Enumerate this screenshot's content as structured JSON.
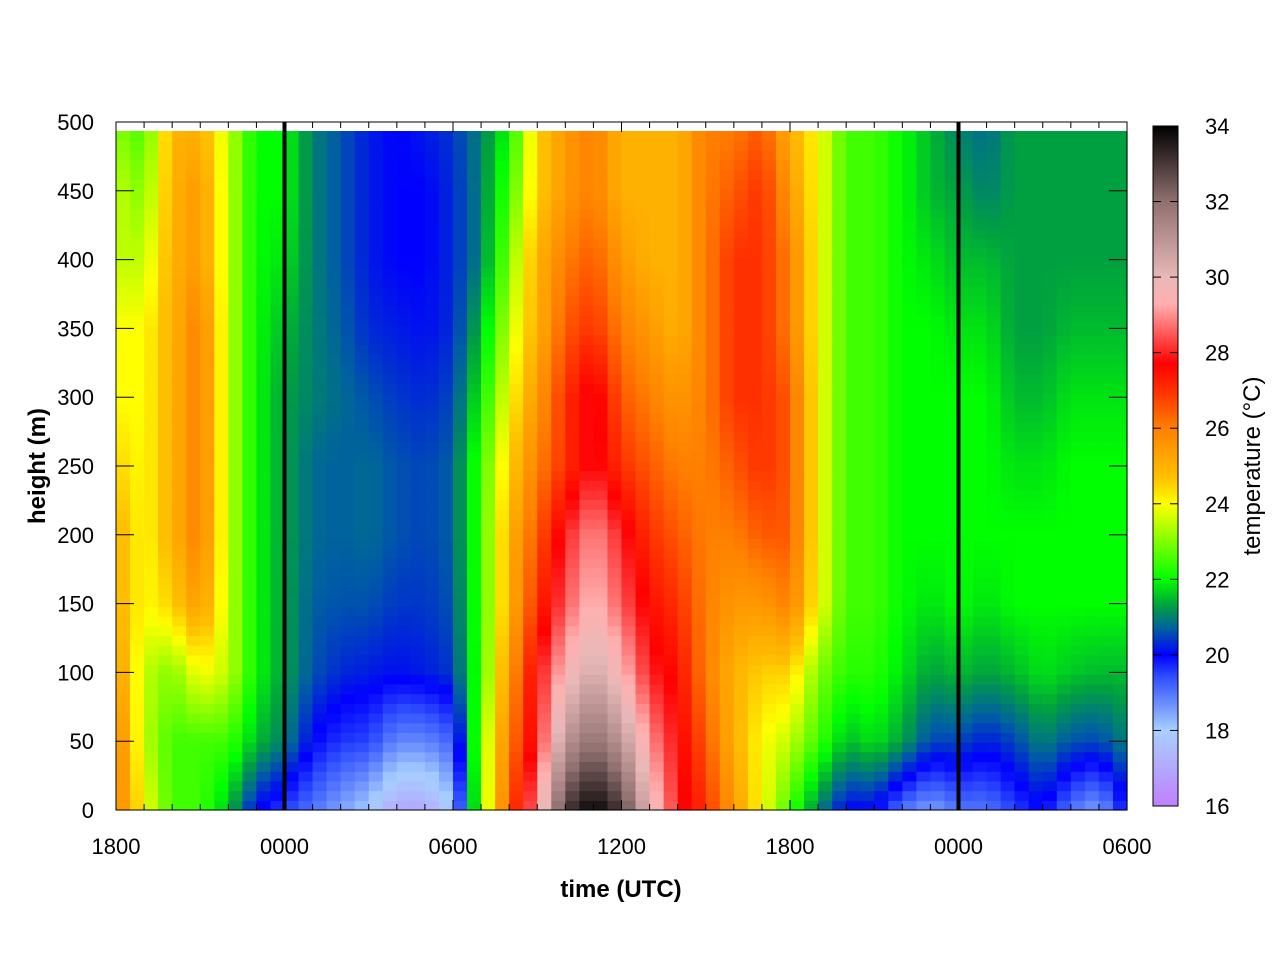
{
  "chart_data": {
    "type": "heatmap",
    "xlabel": "time (UTC)",
    "ylabel": "height (m)",
    "colorbar_label": "temperature (°C)",
    "x_tick_labels": [
      "1800",
      "0000",
      "0600",
      "1200",
      "1800",
      "0000",
      "0600"
    ],
    "x_range_hours": [
      0,
      36
    ],
    "y_ticks": [
      0,
      50,
      100,
      150,
      200,
      250,
      300,
      350,
      400,
      450,
      500
    ],
    "y_range": [
      0,
      500
    ],
    "color_range": [
      16,
      34
    ],
    "colorbar_ticks": [
      16,
      18,
      20,
      22,
      24,
      26,
      28,
      30,
      32,
      34
    ],
    "vertical_markers": [
      "0000",
      "0000"
    ],
    "colormap": [
      {
        "value": 16,
        "color": "#c080ff"
      },
      {
        "value": 18,
        "color": "#a8d0ff"
      },
      {
        "value": 19.4,
        "color": "#3050ff"
      },
      {
        "value": 20,
        "color": "#0000ff"
      },
      {
        "value": 20.7,
        "color": "#0060a0"
      },
      {
        "value": 21.3,
        "color": "#00a040"
      },
      {
        "value": 22,
        "color": "#00ff00"
      },
      {
        "value": 23,
        "color": "#80ff00"
      },
      {
        "value": 24,
        "color": "#ffff00"
      },
      {
        "value": 24.7,
        "color": "#ffc000"
      },
      {
        "value": 26,
        "color": "#ff8000"
      },
      {
        "value": 27,
        "color": "#ff3000"
      },
      {
        "value": 27.7,
        "color": "#ff0000"
      },
      {
        "value": 29.3,
        "color": "#ffb0b0"
      },
      {
        "value": 30,
        "color": "#e8b8b8"
      },
      {
        "value": 32,
        "color": "#907070"
      },
      {
        "value": 34,
        "color": "#000000"
      }
    ],
    "time_profiles": [
      {
        "hour": 0,
        "t": [
          26,
          26,
          25.5,
          25,
          25,
          24.5,
          24,
          24,
          23.5,
          23.5,
          23
        ]
      },
      {
        "hour": 1,
        "t": [
          24,
          23.5,
          23.5,
          24,
          24,
          24,
          24,
          24,
          23.5,
          23,
          22.5
        ]
      },
      {
        "hour": 2,
        "t": [
          22.5,
          22.5,
          23,
          24.5,
          25,
          25,
          25,
          25,
          25,
          25,
          25
        ]
      },
      {
        "hour": 3,
        "t": [
          22.5,
          22.5,
          24,
          25.5,
          26,
          26,
          26,
          26,
          25.5,
          25.5,
          25
        ]
      },
      {
        "hour": 4,
        "t": [
          21.5,
          22.5,
          23.5,
          23.5,
          23.5,
          23.5,
          23.5,
          23.5,
          23.5,
          23.5,
          23.5
        ]
      },
      {
        "hour": 5,
        "t": [
          20,
          21.5,
          22,
          22,
          22,
          22,
          22,
          22,
          22,
          22,
          22
        ]
      },
      {
        "hour": 6,
        "t": [
          19.5,
          21,
          21.3,
          21.3,
          21.3,
          21.3,
          21.3,
          21.5,
          21.8,
          22,
          22
        ]
      },
      {
        "hour": 7,
        "t": [
          19,
          20,
          20.6,
          20.7,
          20.8,
          20.8,
          21,
          21,
          21,
          21,
          21
        ]
      },
      {
        "hour": 8,
        "t": [
          18.5,
          19.6,
          20.3,
          20.6,
          20.7,
          20.7,
          20.8,
          20.7,
          20.6,
          20.6,
          20.6
        ]
      },
      {
        "hour": 9,
        "t": [
          18,
          19.5,
          20.2,
          20.6,
          20.8,
          20.8,
          20.6,
          20.3,
          20.2,
          20.2,
          20.2
        ]
      },
      {
        "hour": 10,
        "t": [
          17,
          18.8,
          20.1,
          20.4,
          20.6,
          20.6,
          20.4,
          20.2,
          20,
          20,
          20
        ]
      },
      {
        "hour": 11,
        "t": [
          17,
          18.8,
          20.2,
          20.4,
          20.5,
          20.5,
          20.3,
          20.1,
          20,
          20,
          20.2
        ]
      },
      {
        "hour": 12,
        "t": [
          18,
          19.2,
          20.4,
          20.6,
          20.7,
          20.7,
          20.5,
          20.3,
          20.3,
          20.3,
          20.4
        ]
      },
      {
        "hour": 13,
        "t": [
          23,
          23,
          22.5,
          22.5,
          22.5,
          22.5,
          22,
          21.5,
          21,
          21,
          21
        ]
      },
      {
        "hour": 14,
        "t": [
          26.5,
          26,
          25.5,
          25,
          25,
          24.5,
          24,
          23.5,
          23,
          22.5,
          22
        ]
      },
      {
        "hour": 15,
        "t": [
          29,
          28,
          27.8,
          27,
          26.5,
          26,
          25.5,
          25,
          25,
          24.5,
          24.5
        ]
      },
      {
        "hour": 16,
        "t": [
          33,
          31,
          29.5,
          28.5,
          28,
          27,
          27,
          26.5,
          26,
          25.5,
          25.5
        ]
      },
      {
        "hour": 17,
        "t": [
          34,
          32,
          30.5,
          29.5,
          29,
          28,
          28,
          27,
          26.5,
          26,
          26
        ]
      },
      {
        "hour": 18,
        "t": [
          33,
          31,
          29.5,
          28.5,
          28,
          27,
          26.5,
          26,
          25.5,
          25,
          25
        ]
      },
      {
        "hour": 19,
        "t": [
          30,
          29,
          28,
          27.5,
          27,
          26.5,
          26,
          25.5,
          25,
          25,
          25
        ]
      },
      {
        "hour": 20,
        "t": [
          28,
          27.8,
          27.5,
          27,
          26.5,
          26,
          25.5,
          25,
          25,
          25,
          25
        ]
      },
      {
        "hour": 21,
        "t": [
          27,
          26.5,
          26,
          26,
          26,
          26,
          26,
          26,
          26,
          26,
          26
        ]
      },
      {
        "hour": 22,
        "t": [
          25.5,
          25,
          25,
          25.5,
          26,
          26.5,
          27,
          27,
          27,
          26.5,
          26
        ]
      },
      {
        "hour": 23,
        "t": [
          24,
          24,
          24.5,
          25.5,
          26.5,
          27,
          27,
          27,
          27,
          27,
          26.5
        ]
      },
      {
        "hour": 24,
        "t": [
          22.5,
          23.5,
          24.5,
          26,
          26.5,
          26.5,
          26.5,
          26,
          26,
          25.5,
          25
        ]
      },
      {
        "hour": 25,
        "t": [
          21,
          22.5,
          23,
          24,
          24,
          24,
          24,
          24,
          24,
          24,
          24
        ]
      },
      {
        "hour": 26,
        "t": [
          20,
          21.5,
          22.3,
          22.5,
          22.5,
          22.5,
          22.5,
          22.5,
          22.5,
          22.5,
          22.5
        ]
      },
      {
        "hour": 27,
        "t": [
          20,
          21.8,
          22.3,
          22.5,
          22.5,
          22.5,
          22.5,
          22.5,
          22.5,
          22.5,
          22.5
        ]
      },
      {
        "hour": 28,
        "t": [
          19,
          21.3,
          21.8,
          22,
          22,
          22,
          22,
          22,
          22,
          22,
          22
        ]
      },
      {
        "hour": 29,
        "t": [
          18.5,
          20.5,
          21.3,
          21.8,
          22,
          22,
          22,
          22,
          21.8,
          21.5,
          21.5
        ]
      },
      {
        "hour": 30,
        "t": [
          19,
          20.5,
          21.5,
          22,
          22,
          22,
          22,
          21.8,
          21.5,
          21.3,
          21
        ]
      },
      {
        "hour": 31,
        "t": [
          19,
          20.2,
          21.3,
          21.8,
          22,
          22,
          22,
          21.8,
          21.5,
          21,
          20.8
        ]
      },
      {
        "hour": 32,
        "t": [
          19.5,
          20.5,
          21.5,
          22,
          22,
          21.8,
          21.5,
          21.3,
          21.3,
          21.3,
          21.3
        ]
      },
      {
        "hour": 33,
        "t": [
          20,
          21,
          21.8,
          22,
          22,
          21.8,
          21.5,
          21.3,
          21.3,
          21.3,
          21.3
        ]
      },
      {
        "hour": 34,
        "t": [
          19,
          20.6,
          21.6,
          22,
          22,
          22,
          21.8,
          21.5,
          21.3,
          21.3,
          21.3
        ]
      },
      {
        "hour": 35,
        "t": [
          18.5,
          20.5,
          21.5,
          22,
          22,
          22,
          21.8,
          21.5,
          21.3,
          21.3,
          21.3
        ]
      },
      {
        "hour": 36,
        "t": [
          20,
          21,
          21.5,
          22,
          22,
          22,
          21.8,
          21.5,
          21.3,
          21.3,
          21.3
        ]
      }
    ]
  }
}
